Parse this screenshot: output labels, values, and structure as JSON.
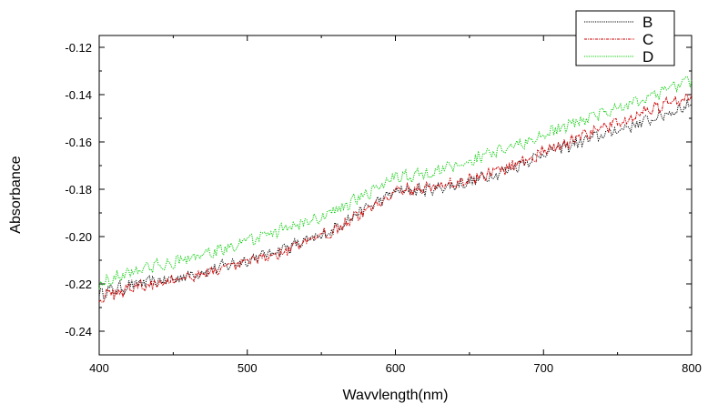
{
  "chart_data": {
    "type": "line",
    "xlabel": "Wavvlength(nm)",
    "ylabel": "Absorbance",
    "xlim": [
      400,
      800
    ],
    "ylim": [
      -0.25,
      -0.115
    ],
    "x_ticks": [
      400,
      500,
      600,
      700,
      800
    ],
    "y_ticks": [
      -0.24,
      -0.22,
      -0.2,
      -0.18,
      -0.16,
      -0.14,
      -0.12
    ],
    "legend_position": "top-right",
    "series": [
      {
        "name": "B",
        "color": "#000000",
        "style": "dotted",
        "x": [
          400,
          425,
          450,
          475,
          500,
          525,
          550,
          575,
          600,
          625,
          650,
          675,
          700,
          725,
          750,
          775,
          800
        ],
        "y": [
          -0.224,
          -0.22,
          -0.218,
          -0.214,
          -0.21,
          -0.205,
          -0.2,
          -0.19,
          -0.181,
          -0.18,
          -0.177,
          -0.172,
          -0.165,
          -0.16,
          -0.155,
          -0.15,
          -0.144
        ]
      },
      {
        "name": "C",
        "color": "#cc0000",
        "style": "dashdot",
        "x": [
          400,
          425,
          450,
          475,
          500,
          525,
          550,
          575,
          600,
          625,
          650,
          675,
          700,
          725,
          750,
          775,
          800
        ],
        "y": [
          -0.226,
          -0.221,
          -0.218,
          -0.215,
          -0.211,
          -0.206,
          -0.2,
          -0.191,
          -0.181,
          -0.179,
          -0.176,
          -0.171,
          -0.164,
          -0.158,
          -0.152,
          -0.146,
          -0.14
        ]
      },
      {
        "name": "D",
        "color": "#00cc00",
        "style": "dotted",
        "x": [
          400,
          425,
          450,
          475,
          500,
          525,
          550,
          575,
          600,
          625,
          650,
          675,
          700,
          725,
          750,
          775,
          800
        ],
        "y": [
          -0.22,
          -0.214,
          -0.211,
          -0.207,
          -0.202,
          -0.197,
          -0.192,
          -0.184,
          -0.175,
          -0.173,
          -0.168,
          -0.163,
          -0.157,
          -0.151,
          -0.146,
          -0.14,
          -0.134
        ]
      }
    ]
  }
}
